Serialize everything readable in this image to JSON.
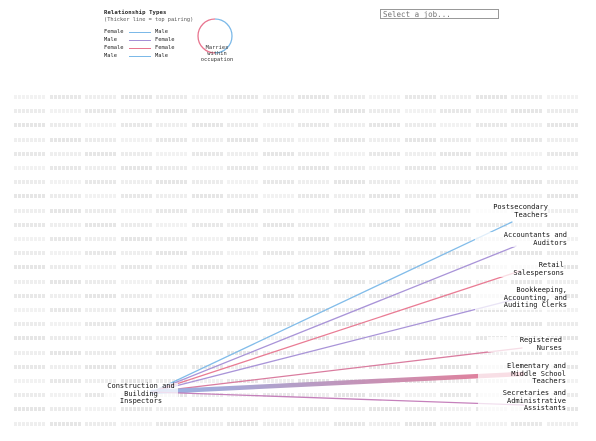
{
  "legend": {
    "title": "Relationship Types",
    "subtitle": "(Thicker line = top pairing)",
    "rows": [
      {
        "left": "Female",
        "right": "Male",
        "color": "#7cb9e8"
      },
      {
        "left": "Male",
        "right": "Female",
        "color": "#a58fd6"
      },
      {
        "left": "Female",
        "right": "Female",
        "color": "#e8758f"
      },
      {
        "left": "Male",
        "right": "Male",
        "color": "#7cb9e8"
      }
    ],
    "circle_label": "Marries within occupation",
    "circle_colors": [
      "#e8758f",
      "#7cb9e8"
    ]
  },
  "search": {
    "placeholder": "Select a job..."
  },
  "selected_job": {
    "label": "Construction and\nBuilding\nInspectors",
    "name": "Construction and Building Inspectors"
  },
  "connections": [
    {
      "label": "Postsecondary\nTeachers",
      "name": "Postsecondary Teachers",
      "color": "#7cb9e8",
      "weight": 1
    },
    {
      "label": "Accountants and\nAuditors",
      "name": "Accountants and Auditors",
      "color": "#a58fd6",
      "weight": 1
    },
    {
      "label": "Retail\nSalespersons",
      "name": "Retail Salespersons",
      "color": "#e8758f",
      "weight": 1
    },
    {
      "label": "Bookkeeping,\nAccounting, and\nAuditing Clerks",
      "name": "Bookkeeping, Accounting, and Auditing Clerks",
      "color": "#a58fd6",
      "weight": 1
    },
    {
      "label": "Registered\nNurses",
      "name": "Registered Nurses",
      "color": "#d8769a",
      "weight": 1
    },
    {
      "label": "Elementary and\nMiddle School\nTeachers",
      "name": "Elementary and Middle School Teachers",
      "color": "#e8758f",
      "weight": 4
    },
    {
      "label": "Secretaries and\nAdministrative\nAssistants",
      "name": "Secretaries and Administrative Assistants",
      "color": "#c27ab8",
      "weight": 1
    }
  ]
}
